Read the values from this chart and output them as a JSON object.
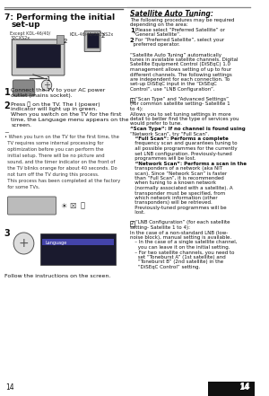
{
  "bg_color": "#ffffff",
  "left_col_bg": "#f0f0f0",
  "title": "7: Performing the initial\n   set-up",
  "page_num": "14",
  "left_text_blocks": [
    {
      "type": "step",
      "num": "1",
      "text": "Connect the TV to your AC power\noutlet (mains socket)."
    },
    {
      "type": "step",
      "num": "2",
      "text": "Press ⒨ on the TV. The I (power)\nindicator will light up in green.\nWhen you switch on the TV for the first\ntime, the Language menu appears on the\nscreen."
    },
    {
      "type": "note",
      "text": "• When you turn on the TV for the first time, the\n  TV requires some internal processing for\n  optimization before you can perform the\n  initial setup. There will be no picture and\n  sound, and the timer indicator on the front of\n  the TV blinks orange for about 40 seconds. Do\n  not turn off the TV during this process.\n  This process has been completed at the factory\n  for some TVs."
    },
    {
      "type": "step3_label",
      "num": "3",
      "text": ""
    },
    {
      "type": "footer",
      "text": "Follow the instructions on the screen."
    }
  ],
  "right_title": "Satellite Auto Tuning:",
  "right_text": "The following procedures may be required\ndepending on the area:\n1  Please select “Preferred Satellite” or\n   “General Satellite”.\n2  For “Preferred Satellite”, select your\n   preferred operator.\n“Satellite Auto Tuning” automatically\ntunes in available satellite channels. Digital\nSatellite Equipment Control (DiSEqC) 1.0\nmanagement allows setting of up to four\ndifferent channels. The following settings\nare independent for each connection. To\nset-up DiSEqC input in the “DiSEqC\nControl”, use “LNB Configuration”.\n\n1  “Scan Type” and “Advanced Settings”\n(for common satellite setting- Satellite 1\nto 4):\nAllows you to set tuning settings in more\ndetail to better find the type of services you\nwould prefer to tune.\n“Scan Type”: If no channel is found using\n“Network Scan”, try “Full Scan”.\n   “Full Scan”: Performs a complete\n   frequency scan and guarantees tuning to\n   all possible programmes for the currently\n   set LNB configuration. Previously-tuned\n   programmes will be lost.\n   “Network Scan”: Performs a scan in the\n   transponders of a network (aka NIT\n   scan). Since “Network Scan” is faster\n   than “Full Scan”, it is recommended\n   when tuning to a known network\n   (normally associated with a satellite). A\n   transponder must be specified, from\n   which network information (other\n   transponders) will be retrieved.\n   Previously-tuned programmes will be\n   lost.\n\n2  “LNB Configuration” (for each satellite\nsetting- Satellite 1 to 4):\nIn the case of a non-standard LNB (low-\nnoise block), manual setting is available.\n   – In the case of a single satellite channel,\n     you can leave it on the initial setting.\n   – For two satellite channels, you need to\n     set “Toneburst A” (1st satellite) and\n     “Toneburst B” (2nd satellite) in the\n     “DiSEqC Control” setting."
}
